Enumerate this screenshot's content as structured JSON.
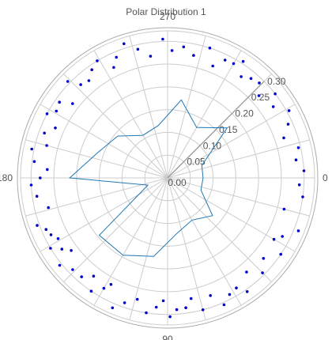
{
  "chart_data": {
    "type": "polar",
    "title": "Polar Distribution 1",
    "angular_axis": {
      "direction": "clockwise",
      "rotation_deg": 0,
      "tick_labels": [
        "0",
        "90",
        "180",
        "270"
      ],
      "tick_values_deg": [
        0,
        90,
        180,
        270
      ]
    },
    "radial_axis": {
      "range": [
        0,
        0.33
      ],
      "tick_values": [
        0.0,
        0.05,
        0.1,
        0.15,
        0.2,
        0.25,
        0.3
      ],
      "tick_labels": [
        "0.00",
        "0.05",
        "0.10",
        "0.15",
        "0.20",
        "0.25",
        "0.30"
      ],
      "label_angle_deg": 315
    },
    "grid": true,
    "colors": {
      "line": "#1f77b4",
      "markers": "#0000cc",
      "grid": "#cccccc",
      "outer_ring": "#aaaaaa"
    },
    "series": [
      {
        "type": "line",
        "closed": true,
        "theta": [
          0,
          20,
          40,
          60,
          80,
          100,
          120,
          140,
          160,
          180,
          200,
          220,
          240,
          260,
          280,
          300,
          320,
          340
        ],
        "r": [
          0.078,
          0.078,
          0.129,
          0.107,
          0.123,
          0.175,
          0.196,
          0.196,
          0.046,
          0.215,
          0.163,
          0.143,
          0.108,
          0.117,
          0.174,
          0.128,
          0.171,
          0.08
        ]
      },
      {
        "type": "scatter",
        "r_min": 0.255,
        "r_max": 0.31,
        "theta": [
          3,
          8,
          15,
          22,
          27,
          30,
          34,
          40,
          45,
          50,
          55,
          58,
          62,
          66,
          70,
          75,
          79,
          82,
          86,
          89,
          92,
          95,
          99,
          104,
          109,
          113,
          118,
          120,
          124,
          127,
          131,
          136,
          141,
          143,
          146,
          149,
          151,
          154,
          157,
          160,
          166,
          172,
          177,
          180,
          184,
          187,
          192,
          195,
          200,
          204,
          208,
          211,
          215,
          218,
          224,
          227,
          231,
          235,
          239,
          244,
          247,
          252,
          257,
          262,
          268,
          272,
          277,
          282,
          288,
          292,
          296,
          300,
          303,
          306,
          310,
          314,
          318,
          322,
          326,
          331,
          336,
          341,
          347,
          352,
          357
        ],
        "r": [
          0.29,
          0.3,
          0.265,
          0.31,
          0.283,
          0.27,
          0.3,
          0.275,
          0.295,
          0.27,
          0.305,
          0.285,
          0.29,
          0.305,
          0.275,
          0.3,
          0.27,
          0.288,
          0.29,
          0.305,
          0.27,
          0.285,
          0.3,
          0.275,
          0.29,
          0.31,
          0.265,
          0.28,
          0.3,
          0.27,
          0.288,
          0.29,
          0.305,
          0.265,
          0.28,
          0.3,
          0.275,
          0.285,
          0.29,
          0.305,
          0.27,
          0.29,
          0.3,
          0.28,
          0.265,
          0.295,
          0.305,
          0.275,
          0.288,
          0.27,
          0.3,
          0.285,
          0.29,
          0.265,
          0.305,
          0.28,
          0.275,
          0.29,
          0.3,
          0.27,
          0.288,
          0.31,
          0.29,
          0.27,
          0.305,
          0.28,
          0.29,
          0.275,
          0.3,
          0.265,
          0.288,
          0.29,
          0.305,
          0.275,
          0.285,
          0.29,
          0.27,
          0.3,
          0.28,
          0.305,
          0.29,
          0.27,
          0.295,
          0.285,
          0.3
        ]
      }
    ]
  }
}
